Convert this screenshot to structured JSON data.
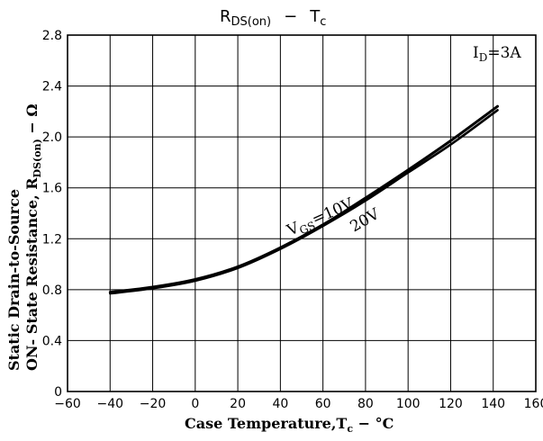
{
  "chart_data": {
    "type": "line",
    "title": {
      "lhs_main": "R",
      "lhs_sub": "DS(on)",
      "dash": "−",
      "rhs_main": "T",
      "rhs_sub": "c"
    },
    "xlabel": {
      "prefix": "Case Temperature,T",
      "sub": "c",
      "suffix": " − °C"
    },
    "ylabel": {
      "line1": "Static Drain-to-Source",
      "line2_prefix": "ON- State Resistance, R",
      "line2_sub": "DS(on)",
      "line2_suffix": " − Ω"
    },
    "xlim": [
      -60,
      160
    ],
    "ylim": [
      0,
      2.8
    ],
    "x_ticks": [
      "−60",
      "−40",
      "−20",
      "0",
      "20",
      "40",
      "60",
      "80",
      "100",
      "120",
      "140",
      "160"
    ],
    "y_ticks": [
      "0",
      "0.4",
      "0.8",
      "1.2",
      "1.6",
      "2.0",
      "2.4",
      "2.8"
    ],
    "grid": true,
    "annotations": {
      "condition_main": "I",
      "condition_sub": "D",
      "condition_value": "=3A",
      "vgs10_main": "V",
      "vgs10_sub": "GS",
      "vgs10_value": "=10V",
      "vgs20": "20V"
    },
    "series": [
      {
        "name": "VGS=10V",
        "x": [
          -40,
          -20,
          0,
          20,
          40,
          60,
          80,
          100,
          120,
          142
        ],
        "y": [
          0.78,
          0.82,
          0.88,
          0.98,
          1.13,
          1.31,
          1.52,
          1.74,
          1.97,
          2.24
        ]
      },
      {
        "name": "VGS=20V",
        "x": [
          -40,
          -20,
          0,
          20,
          40,
          60,
          80,
          100,
          120,
          142
        ],
        "y": [
          0.77,
          0.81,
          0.87,
          0.97,
          1.12,
          1.3,
          1.5,
          1.72,
          1.94,
          2.21
        ]
      }
    ]
  }
}
